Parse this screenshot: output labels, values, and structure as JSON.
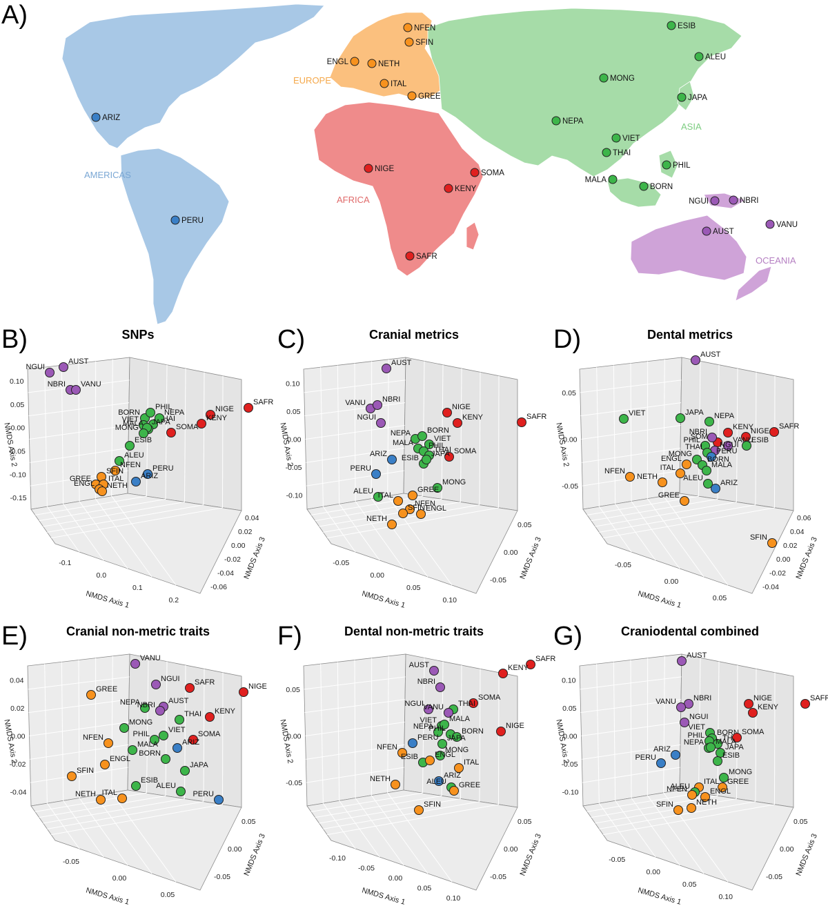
{
  "colors": {
    "AMERICAS": "#3a7fc6",
    "EUROPE": "#f7921e",
    "AFRICA": "#e0201f",
    "ASIA": "#3db54a",
    "OCEANIA": "#9b59b6"
  },
  "region_colors_map": {
    "AMERICAS": "#a8c8e6",
    "EUROPE": "#fbc07e",
    "AFRICA": "#ef8b8b",
    "ASIA": "#a6dca8",
    "OCEANIA": "#cfa3d8"
  },
  "map": {
    "letter": "A)",
    "regions": [
      {
        "name": "AMERICAS"
      },
      {
        "name": "EUROPE"
      },
      {
        "name": "AFRICA"
      },
      {
        "name": "ASIA"
      },
      {
        "name": "OCEANIA"
      }
    ],
    "populations": [
      {
        "code": "ARIZ",
        "region": "AMERICAS"
      },
      {
        "code": "PERU",
        "region": "AMERICAS"
      },
      {
        "code": "NFEN",
        "region": "EUROPE"
      },
      {
        "code": "SFIN",
        "region": "EUROPE"
      },
      {
        "code": "ENGL",
        "region": "EUROPE"
      },
      {
        "code": "NETH",
        "region": "EUROPE"
      },
      {
        "code": "ITAL",
        "region": "EUROPE"
      },
      {
        "code": "GREE",
        "region": "EUROPE"
      },
      {
        "code": "NIGE",
        "region": "AFRICA"
      },
      {
        "code": "SOMA",
        "region": "AFRICA"
      },
      {
        "code": "KENY",
        "region": "AFRICA"
      },
      {
        "code": "SAFR",
        "region": "AFRICA"
      },
      {
        "code": "ESIB",
        "region": "ASIA"
      },
      {
        "code": "ALEU",
        "region": "ASIA"
      },
      {
        "code": "MONG",
        "region": "ASIA"
      },
      {
        "code": "JAPA",
        "region": "ASIA"
      },
      {
        "code": "NEPA",
        "region": "ASIA"
      },
      {
        "code": "VIET",
        "region": "ASIA"
      },
      {
        "code": "THAI",
        "region": "ASIA"
      },
      {
        "code": "PHIL",
        "region": "ASIA"
      },
      {
        "code": "MALA",
        "region": "ASIA"
      },
      {
        "code": "BORN",
        "region": "ASIA"
      },
      {
        "code": "NGUI",
        "region": "OCEANIA"
      },
      {
        "code": "NBRI",
        "region": "OCEANIA"
      },
      {
        "code": "AUST",
        "region": "OCEANIA"
      },
      {
        "code": "VANU",
        "region": "OCEANIA"
      }
    ]
  },
  "chart_data": [
    {
      "letter": "B)",
      "title": "SNPs",
      "type": "scatter",
      "axes": {
        "x": {
          "label": "NMDS Axis 1",
          "ticks": [
            "-0.1",
            "0.0",
            "0.1",
            "0.2"
          ]
        },
        "y": {
          "label": "NMDS Axis 2",
          "ticks": [
            "-0.15",
            "-0.10",
            "-0.05",
            "0.00",
            "0.05",
            "0.10"
          ]
        },
        "z": {
          "label": "NMDS Axis 3",
          "ticks": [
            "-0.06",
            "-0.04",
            "-0.02",
            "0.00",
            "0.02",
            "0.04"
          ]
        }
      },
      "points": [
        {
          "label": "AUST",
          "region": "OCEANIA"
        },
        {
          "label": "NGUI",
          "region": "OCEANIA"
        },
        {
          "label": "NBRI",
          "region": "OCEANIA"
        },
        {
          "label": "VANU",
          "region": "OCEANIA"
        },
        {
          "label": "SAFR",
          "region": "AFRICA"
        },
        {
          "label": "NIGE",
          "region": "AFRICA"
        },
        {
          "label": "KENY",
          "region": "AFRICA"
        },
        {
          "label": "SOMA",
          "region": "AFRICA"
        },
        {
          "label": "BORN",
          "region": "ASIA"
        },
        {
          "label": "PHIL",
          "region": "ASIA"
        },
        {
          "label": "VIET",
          "region": "ASIA"
        },
        {
          "label": "THAI",
          "region": "ASIA"
        },
        {
          "label": "MALA",
          "region": "ASIA"
        },
        {
          "label": "NEPA",
          "region": "ASIA"
        },
        {
          "label": "JAPA",
          "region": "ASIA"
        },
        {
          "label": "MONG",
          "region": "ASIA"
        },
        {
          "label": "ESIB",
          "region": "ASIA"
        },
        {
          "label": "ALEU",
          "region": "ASIA"
        },
        {
          "label": "NFEN",
          "region": "EUROPE"
        },
        {
          "label": "SFIN",
          "region": "EUROPE"
        },
        {
          "label": "GREE",
          "region": "EUROPE"
        },
        {
          "label": "ITAL",
          "region": "EUROPE"
        },
        {
          "label": "ENGL",
          "region": "EUROPE"
        },
        {
          "label": "NETH",
          "region": "EUROPE"
        },
        {
          "label": "PERU",
          "region": "AMERICAS"
        },
        {
          "label": "ARIZ",
          "region": "AMERICAS"
        }
      ]
    },
    {
      "letter": "C)",
      "title": "Cranial metrics",
      "type": "scatter",
      "axes": {
        "x": {
          "label": "NMDS Axis 1",
          "ticks": [
            "-0.05",
            "0.00",
            "0.05",
            "0.10"
          ]
        },
        "y": {
          "label": "NMDS Axis 2",
          "ticks": [
            "-0.10",
            "-0.05",
            "0.00",
            "0.05",
            "0.10"
          ]
        },
        "z": {
          "label": "NMDS Axis 3",
          "ticks": [
            "-0.05",
            "0.00",
            "0.05"
          ]
        }
      },
      "points": [
        {
          "label": "AUST",
          "region": "OCEANIA"
        },
        {
          "label": "VANU",
          "region": "OCEANIA"
        },
        {
          "label": "NBRI",
          "region": "OCEANIA"
        },
        {
          "label": "NGUI",
          "region": "OCEANIA"
        },
        {
          "label": "NIGE",
          "region": "AFRICA"
        },
        {
          "label": "KENY",
          "region": "AFRICA"
        },
        {
          "label": "SAFR",
          "region": "AFRICA"
        },
        {
          "label": "SOMA",
          "region": "AFRICA"
        },
        {
          "label": "NEPA",
          "region": "ASIA"
        },
        {
          "label": "BORN",
          "region": "ASIA"
        },
        {
          "label": "VIET",
          "region": "ASIA"
        },
        {
          "label": "MALA",
          "region": "ASIA"
        },
        {
          "label": "PHIL",
          "region": "ASIA"
        },
        {
          "label": "THAI",
          "region": "ASIA"
        },
        {
          "label": "ESIB",
          "region": "ASIA"
        },
        {
          "label": "JAPA",
          "region": "ASIA"
        },
        {
          "label": "MONG",
          "region": "ASIA"
        },
        {
          "label": "ALEU",
          "region": "ASIA"
        },
        {
          "label": "ARIZ",
          "region": "AMERICAS"
        },
        {
          "label": "PERU",
          "region": "AMERICAS"
        },
        {
          "label": "GREE",
          "region": "EUROPE"
        },
        {
          "label": "ITAL",
          "region": "EUROPE"
        },
        {
          "label": "NFEN",
          "region": "EUROPE"
        },
        {
          "label": "SFIN",
          "region": "EUROPE"
        },
        {
          "label": "ENGL",
          "region": "EUROPE"
        },
        {
          "label": "NETH",
          "region": "EUROPE"
        }
      ]
    },
    {
      "letter": "D)",
      "title": "Dental metrics",
      "type": "scatter",
      "axes": {
        "x": {
          "label": "NMDS Axis 1",
          "ticks": [
            "-0.05",
            "0.00",
            "0.05"
          ]
        },
        "y": {
          "label": "NMDS Axis 2",
          "ticks": [
            "-0.05",
            "0.00",
            "0.05"
          ]
        },
        "z": {
          "label": "NMDS Axis 3",
          "ticks": [
            "-0.04",
            "-0.02",
            "0.00",
            "0.02",
            "0.04",
            "0.06"
          ]
        }
      },
      "points": [
        {
          "label": "AUST",
          "region": "OCEANIA"
        },
        {
          "label": "VIET",
          "region": "ASIA"
        },
        {
          "label": "JAPA",
          "region": "ASIA"
        },
        {
          "label": "NEPA",
          "region": "ASIA"
        },
        {
          "label": "KENY",
          "region": "AFRICA"
        },
        {
          "label": "SAFR",
          "region": "AFRICA"
        },
        {
          "label": "NIGE",
          "region": "AFRICA"
        },
        {
          "label": "SOMA",
          "region": "AFRICA"
        },
        {
          "label": "NBRI",
          "region": "OCEANIA"
        },
        {
          "label": "VANU",
          "region": "OCEANIA"
        },
        {
          "label": "NGUI",
          "region": "OCEANIA"
        },
        {
          "label": "PHIL",
          "region": "ASIA"
        },
        {
          "label": "THAI",
          "region": "ASIA"
        },
        {
          "label": "ESIB",
          "region": "ASIA"
        },
        {
          "label": "MONG",
          "region": "ASIA"
        },
        {
          "label": "PERU",
          "region": "AMERICAS"
        },
        {
          "label": "BORN",
          "region": "ASIA"
        },
        {
          "label": "MALA",
          "region": "ASIA"
        },
        {
          "label": "ENGL",
          "region": "EUROPE"
        },
        {
          "label": "ITAL",
          "region": "EUROPE"
        },
        {
          "label": "NFEN",
          "region": "EUROPE"
        },
        {
          "label": "NETH",
          "region": "EUROPE"
        },
        {
          "label": "ALEU",
          "region": "ASIA"
        },
        {
          "label": "ARIZ",
          "region": "AMERICAS"
        },
        {
          "label": "GREE",
          "region": "EUROPE"
        },
        {
          "label": "SFIN",
          "region": "EUROPE"
        }
      ]
    },
    {
      "letter": "E)",
      "title": "Cranial non-metric traits",
      "type": "scatter",
      "axes": {
        "x": {
          "label": "NMDS Axis 1",
          "ticks": [
            "-0.05",
            "0.00",
            "0.05"
          ]
        },
        "y": {
          "label": "NMDS Axis 2",
          "ticks": [
            "-0.04",
            "-0.02",
            "0.00",
            "0.02",
            "0.04"
          ]
        },
        "z": {
          "label": "NMDS Axis 3",
          "ticks": [
            "-0.05",
            "0.00",
            "0.05"
          ]
        }
      },
      "points": [
        {
          "label": "VANU",
          "region": "OCEANIA"
        },
        {
          "label": "GREE",
          "region": "EUROPE"
        },
        {
          "label": "NGUI",
          "region": "OCEANIA"
        },
        {
          "label": "SAFR",
          "region": "AFRICA"
        },
        {
          "label": "NIGE",
          "region": "AFRICA"
        },
        {
          "label": "NEPA",
          "region": "ASIA"
        },
        {
          "label": "AUST",
          "region": "OCEANIA"
        },
        {
          "label": "NBRI",
          "region": "OCEANIA"
        },
        {
          "label": "THAI",
          "region": "ASIA"
        },
        {
          "label": "KENY",
          "region": "AFRICA"
        },
        {
          "label": "MONG",
          "region": "ASIA"
        },
        {
          "label": "VIET",
          "region": "ASIA"
        },
        {
          "label": "SOMA",
          "region": "AFRICA"
        },
        {
          "label": "NFEN",
          "region": "EUROPE"
        },
        {
          "label": "PHIL",
          "region": "ASIA"
        },
        {
          "label": "ARIZ",
          "region": "AMERICAS"
        },
        {
          "label": "MALA",
          "region": "ASIA"
        },
        {
          "label": "BORN",
          "region": "ASIA"
        },
        {
          "label": "ENGL",
          "region": "EUROPE"
        },
        {
          "label": "JAPA",
          "region": "ASIA"
        },
        {
          "label": "SFIN",
          "region": "EUROPE"
        },
        {
          "label": "ESIB",
          "region": "ASIA"
        },
        {
          "label": "ALEU",
          "region": "ASIA"
        },
        {
          "label": "NETH",
          "region": "EUROPE"
        },
        {
          "label": "ITAL",
          "region": "EUROPE"
        },
        {
          "label": "PERU",
          "region": "AMERICAS"
        }
      ]
    },
    {
      "letter": "F)",
      "title": "Dental non-metric traits",
      "type": "scatter",
      "axes": {
        "x": {
          "label": "NMDS Axis 1",
          "ticks": [
            "-0.10",
            "-0.05",
            "0.00",
            "0.05",
            "0.10"
          ]
        },
        "y": {
          "label": "NMDS Axis 2",
          "ticks": [
            "-0.05",
            "0.00",
            "0.05"
          ]
        },
        "z": {
          "label": "NMDS Axis 3",
          "ticks": [
            "-0.05",
            "0.00",
            "0.05"
          ]
        }
      },
      "points": [
        {
          "label": "SAFR",
          "region": "AFRICA"
        },
        {
          "label": "AUST",
          "region": "OCEANIA"
        },
        {
          "label": "NBRI",
          "region": "OCEANIA"
        },
        {
          "label": "KENY",
          "region": "AFRICA"
        },
        {
          "label": "NGUI",
          "region": "OCEANIA"
        },
        {
          "label": "SOMA",
          "region": "AFRICA"
        },
        {
          "label": "THAI",
          "region": "ASIA"
        },
        {
          "label": "VANU",
          "region": "OCEANIA"
        },
        {
          "label": "VIET",
          "region": "ASIA"
        },
        {
          "label": "MALA",
          "region": "ASIA"
        },
        {
          "label": "NEPA",
          "region": "ASIA"
        },
        {
          "label": "PHIL",
          "region": "ASIA"
        },
        {
          "label": "BORN",
          "region": "ASIA"
        },
        {
          "label": "NIGE",
          "region": "AFRICA"
        },
        {
          "label": "PERU",
          "region": "AMERICAS"
        },
        {
          "label": "JAPA",
          "region": "ASIA"
        },
        {
          "label": "NFEN",
          "region": "EUROPE"
        },
        {
          "label": "MONG",
          "region": "ASIA"
        },
        {
          "label": "ESIB",
          "region": "ASIA"
        },
        {
          "label": "ENGL",
          "region": "EUROPE"
        },
        {
          "label": "ITAL",
          "region": "EUROPE"
        },
        {
          "label": "ARIZ",
          "region": "AMERICAS"
        },
        {
          "label": "NETH",
          "region": "EUROPE"
        },
        {
          "label": "ALEU",
          "region": "ASIA"
        },
        {
          "label": "GREE",
          "region": "EUROPE"
        },
        {
          "label": "SFIN",
          "region": "EUROPE"
        }
      ]
    },
    {
      "letter": "G)",
      "title": "Craniodental combined",
      "type": "scatter",
      "axes": {
        "x": {
          "label": "NMDS Axis 1",
          "ticks": [
            "-0.05",
            "0.00",
            "0.05",
            "0.10"
          ]
        },
        "y": {
          "label": "NMDS Axis 2",
          "ticks": [
            "-0.10",
            "-0.05",
            "0.00",
            "0.05",
            "0.10"
          ]
        },
        "z": {
          "label": "NMDS Axis 3",
          "ticks": [
            "-0.05",
            "0.00",
            "0.05"
          ]
        }
      },
      "points": [
        {
          "label": "AUST",
          "region": "OCEANIA"
        },
        {
          "label": "NBRI",
          "region": "OCEANIA"
        },
        {
          "label": "NIGE",
          "region": "AFRICA"
        },
        {
          "label": "SAFR",
          "region": "AFRICA"
        },
        {
          "label": "VANU",
          "region": "OCEANIA"
        },
        {
          "label": "KENY",
          "region": "AFRICA"
        },
        {
          "label": "NGUI",
          "region": "OCEANIA"
        },
        {
          "label": "VIET",
          "region": "ASIA"
        },
        {
          "label": "BORN",
          "region": "ASIA"
        },
        {
          "label": "PHIL",
          "region": "ASIA"
        },
        {
          "label": "THAI",
          "region": "ASIA"
        },
        {
          "label": "SOMA",
          "region": "AFRICA"
        },
        {
          "label": "NEPA",
          "region": "ASIA"
        },
        {
          "label": "MALA",
          "region": "ASIA"
        },
        {
          "label": "JAPA",
          "region": "ASIA"
        },
        {
          "label": "ARIZ",
          "region": "AMERICAS"
        },
        {
          "label": "ESIB",
          "region": "ASIA"
        },
        {
          "label": "PERU",
          "region": "AMERICAS"
        },
        {
          "label": "MONG",
          "region": "ASIA"
        },
        {
          "label": "ITAL",
          "region": "EUROPE"
        },
        {
          "label": "ALEU",
          "region": "ASIA"
        },
        {
          "label": "GREE",
          "region": "EUROPE"
        },
        {
          "label": "NFEN",
          "region": "EUROPE"
        },
        {
          "label": "ENGL",
          "region": "EUROPE"
        },
        {
          "label": "SFIN",
          "region": "EUROPE"
        },
        {
          "label": "NETH",
          "region": "EUROPE"
        }
      ]
    }
  ]
}
